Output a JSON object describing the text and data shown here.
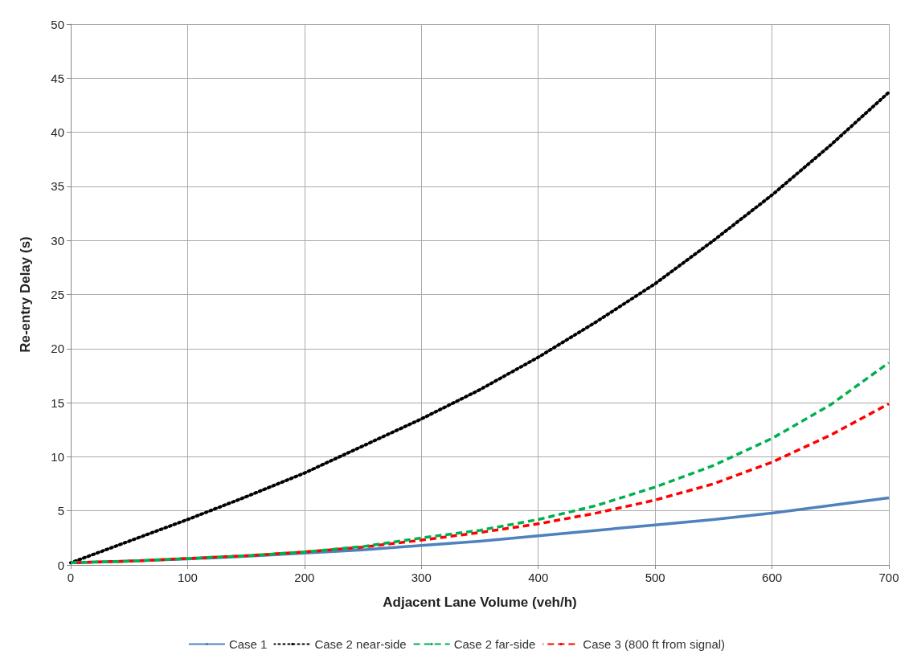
{
  "chart_data": {
    "type": "line",
    "xlabel": "Adjacent Lane Volume (veh/h)",
    "ylabel": "Re-entry Delay (s)",
    "x": [
      0,
      50,
      100,
      150,
      200,
      250,
      300,
      350,
      400,
      450,
      500,
      550,
      600,
      650,
      700
    ],
    "xlim": [
      0,
      700
    ],
    "xticks": [
      0,
      100,
      200,
      300,
      400,
      500,
      600,
      700
    ],
    "ylim": [
      0,
      50
    ],
    "yticks": [
      0,
      5,
      10,
      15,
      20,
      25,
      30,
      35,
      40,
      45,
      50
    ],
    "grid": true,
    "legend": "bottom",
    "marker": "none",
    "series": [
      {
        "name": "Case 1",
        "color": "#4f81bd",
        "line_style": "solid",
        "values": [
          0.2,
          0.35,
          0.55,
          0.8,
          1.1,
          1.4,
          1.8,
          2.2,
          2.7,
          3.2,
          3.7,
          4.2,
          4.8,
          5.5,
          6.2
        ]
      },
      {
        "name": "Case 2 near-side",
        "color": "#000000",
        "line_style": "dotted",
        "values": [
          0.2,
          2.2,
          4.2,
          6.3,
          8.5,
          11,
          13.5,
          16.2,
          19.2,
          22.5,
          26,
          30,
          34.2,
          38.8,
          43.7
        ]
      },
      {
        "name": "Case 2 far-side",
        "color": "#00b050",
        "line_style": "dashed",
        "values": [
          0.2,
          0.35,
          0.6,
          0.85,
          1.2,
          1.7,
          2.5,
          3.2,
          4.2,
          5.5,
          7.2,
          9.2,
          11.7,
          14.8,
          18.7
        ]
      },
      {
        "name": "Case 3 (800 ft from signal)",
        "color": "#ff0000",
        "line_style": "dashed",
        "values": [
          0.2,
          0.35,
          0.6,
          0.85,
          1.2,
          1.65,
          2.3,
          3,
          3.8,
          4.8,
          6,
          7.5,
          9.5,
          12,
          14.9
        ]
      }
    ]
  }
}
